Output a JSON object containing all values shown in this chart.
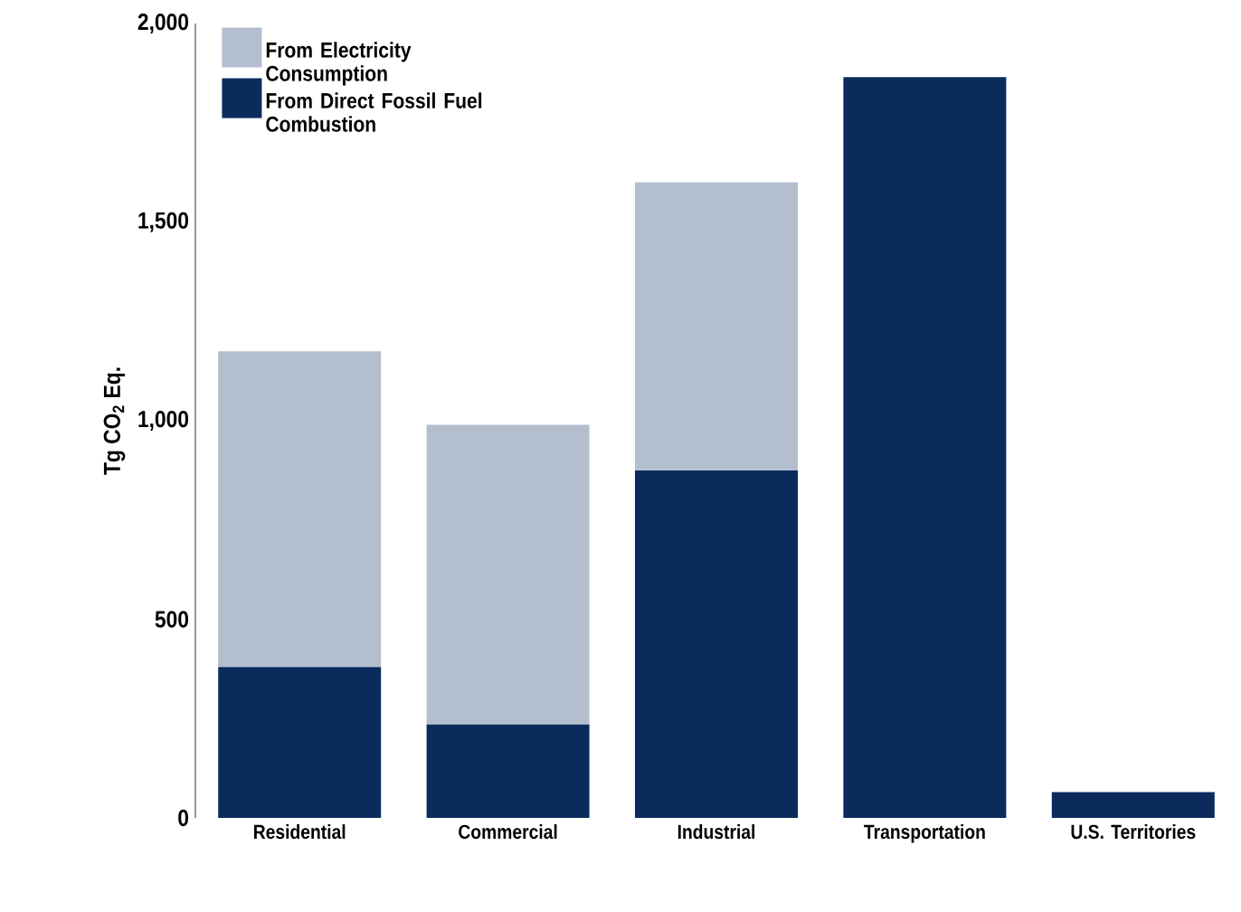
{
  "chart_data": {
    "type": "bar",
    "stacked": true,
    "ylabel": "Tg CO$_{2}$ Eq.",
    "categories": [
      "Residential",
      "Commercial",
      "Industrial",
      "Transportation",
      "U.S. Territories"
    ],
    "series": [
      {
        "name": "From Direct Fossil Fuel Combustion",
        "color": "#0a2b5c",
        "values": [
          380,
          235,
          875,
          1865,
          65
        ]
      },
      {
        "name": "From Electricity Consumption",
        "color": "#b3bfcf",
        "values": [
          795,
          755,
          725,
          0,
          0
        ]
      }
    ],
    "ylim": [
      0,
      2000
    ],
    "yticks": [
      0,
      500,
      {
        "value": 1000,
        "label": "1,000"
      },
      {
        "value": 1500,
        "label": "1,500"
      },
      {
        "value": 2000,
        "label": "2,000"
      }
    ],
    "grid": false,
    "legend": "top left"
  }
}
